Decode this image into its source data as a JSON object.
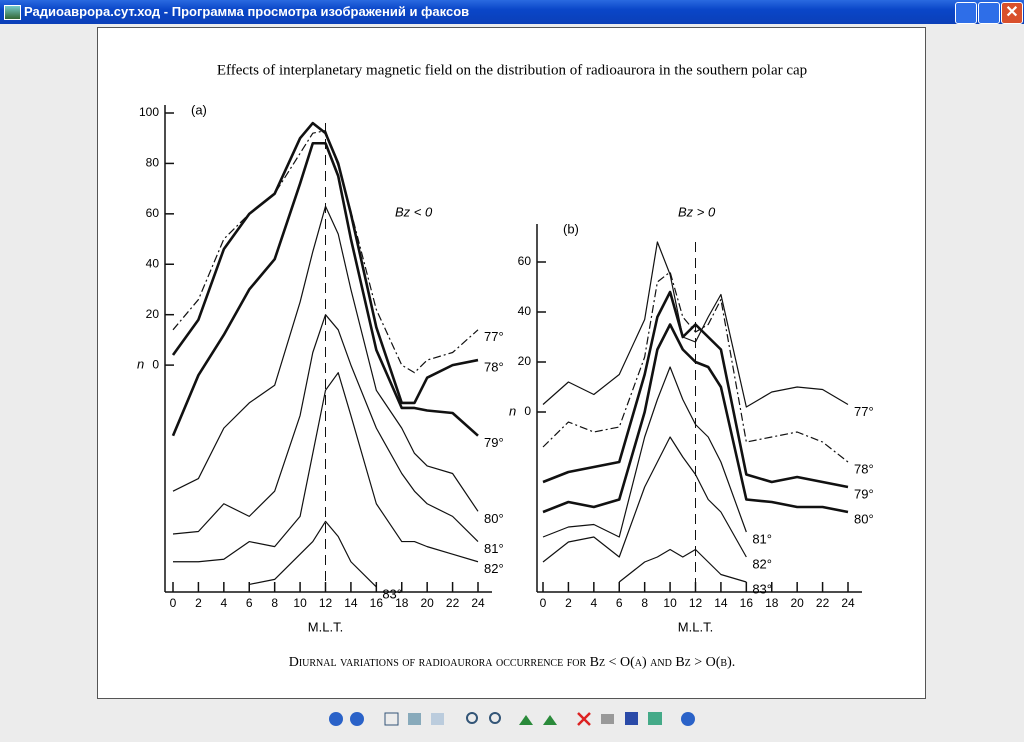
{
  "window": {
    "title": "Радиоаврора.сут.ход - Программа просмотра изображений и факсов"
  },
  "figure": {
    "title": "Effects of interplanetary magnetic field on the distribution of radioaurora in the southern polar cap",
    "caption": "Diurnal variations of radioaurora occurrence for Bz < O(a) and Bz > O(b)."
  },
  "chart_data": [
    {
      "type": "line",
      "panel": "(a)",
      "condition": "Bz < 0",
      "ylabel": "n",
      "xlabel": "M.L.T.",
      "x": [
        0,
        2,
        4,
        6,
        8,
        10,
        11,
        12,
        13,
        14,
        16,
        18,
        19,
        20,
        22,
        24
      ],
      "xlim": [
        0,
        24
      ],
      "xticks": [
        0,
        2,
        4,
        6,
        8,
        10,
        12,
        14,
        16,
        18,
        20,
        22,
        24
      ],
      "ylim": [
        -90,
        100
      ],
      "yticks": [
        0,
        20,
        40,
        60,
        80,
        100
      ],
      "series": [
        {
          "name": "77°",
          "dash": true,
          "bold": false,
          "values": [
            14,
            26,
            50,
            60,
            68,
            84,
            92,
            93,
            79,
            61,
            22,
            0,
            -3,
            2,
            5,
            14
          ]
        },
        {
          "name": "78°",
          "dash": false,
          "bold": true,
          "values": [
            4,
            18,
            46,
            60,
            68,
            90,
            96,
            92,
            80,
            60,
            15,
            -15,
            -15,
            -5,
            0,
            2
          ]
        },
        {
          "name": "79°",
          "dash": false,
          "bold": true,
          "values": [
            -28,
            -4,
            12,
            30,
            42,
            72,
            88,
            88,
            75,
            50,
            6,
            -17,
            -17,
            -18,
            -19,
            -28
          ]
        },
        {
          "name": "80°",
          "dash": false,
          "bold": false,
          "values": [
            -50,
            -45,
            -25,
            -15,
            -8,
            25,
            45,
            63,
            52,
            30,
            -10,
            -25,
            -35,
            -40,
            -43,
            -58
          ]
        },
        {
          "name": "81°",
          "dash": false,
          "bold": false,
          "values": [
            -67,
            -66,
            -55,
            -60,
            -50,
            -20,
            5,
            20,
            14,
            0,
            -25,
            -43,
            -50,
            -55,
            -60,
            -70
          ]
        },
        {
          "name": "82°",
          "dash": false,
          "bold": false,
          "values": [
            -78,
            -78,
            -77,
            -70,
            -72,
            -60,
            -35,
            -10,
            -3,
            -20,
            -55,
            -70,
            -70,
            -72,
            -75,
            -78
          ]
        },
        {
          "name": "83°",
          "dash": false,
          "bold": false,
          "values": [
            null,
            null,
            null,
            -87,
            -85,
            -75,
            -70,
            -62,
            -68,
            -78,
            -88,
            null,
            null,
            null,
            null,
            null
          ]
        }
      ]
    },
    {
      "type": "line",
      "panel": "(b)",
      "condition": "Bz > 0",
      "ylabel": "n",
      "xlabel": "M.L.T.",
      "x": [
        0,
        2,
        4,
        6,
        8,
        9,
        10,
        11,
        12,
        13,
        14,
        16,
        18,
        20,
        22,
        24
      ],
      "xlim": [
        0,
        24
      ],
      "xticks": [
        0,
        2,
        4,
        6,
        8,
        10,
        12,
        14,
        16,
        18,
        20,
        22,
        24
      ],
      "ylim": [
        -72,
        72
      ],
      "yticks": [
        0,
        20,
        40,
        60
      ],
      "series": [
        {
          "name": "77°",
          "dash": false,
          "bold": false,
          "values": [
            3,
            12,
            7,
            15,
            37,
            68,
            55,
            30,
            28,
            38,
            47,
            2,
            8,
            10,
            9,
            3
          ]
        },
        {
          "name": "78°",
          "dash": true,
          "bold": false,
          "values": [
            -14,
            -4,
            -8,
            -6,
            22,
            52,
            56,
            38,
            32,
            35,
            45,
            -12,
            -10,
            -8,
            -12,
            -20
          ]
        },
        {
          "name": "79°",
          "dash": false,
          "bold": true,
          "values": [
            -28,
            -24,
            -22,
            -20,
            15,
            38,
            48,
            30,
            35,
            30,
            25,
            -25,
            -28,
            -26,
            -28,
            -30
          ]
        },
        {
          "name": "80°",
          "dash": false,
          "bold": true,
          "values": [
            -40,
            -36,
            -38,
            -35,
            0,
            25,
            35,
            25,
            20,
            18,
            10,
            -35,
            -36,
            -38,
            -38,
            -40
          ]
        },
        {
          "name": "81°",
          "dash": false,
          "bold": false,
          "values": [
            -50,
            -46,
            -45,
            -50,
            -10,
            5,
            18,
            5,
            -5,
            -10,
            -20,
            -48,
            null,
            null,
            null,
            null
          ]
        },
        {
          "name": "82°",
          "dash": false,
          "bold": false,
          "values": [
            -60,
            -52,
            -50,
            -58,
            -30,
            -20,
            -10,
            -18,
            -25,
            -35,
            -40,
            -58,
            null,
            null,
            null,
            null
          ]
        },
        {
          "name": "83°",
          "dash": false,
          "bold": false,
          "values": [
            null,
            null,
            null,
            -68,
            -60,
            -58,
            -55,
            -58,
            -55,
            -60,
            -65,
            -68,
            null,
            null,
            null,
            null
          ]
        }
      ]
    }
  ]
}
